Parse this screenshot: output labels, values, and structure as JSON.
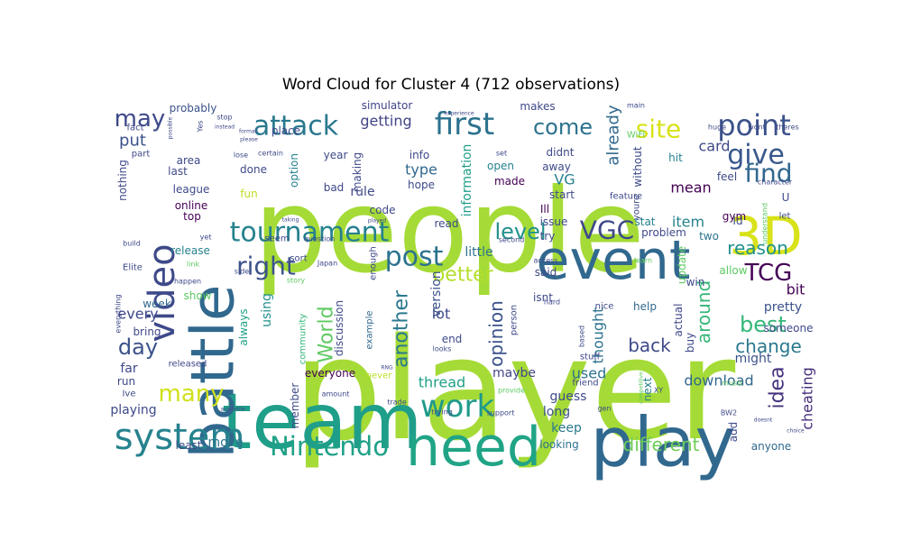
{
  "chart_data": {
    "type": "wordcloud",
    "title": "Word Cloud for Cluster 4 (712 observations)",
    "words": [
      {
        "text": "player",
        "color": "#a5db36"
      },
      {
        "text": "people",
        "color": "#a5db36"
      },
      {
        "text": "team",
        "color": "#1f9e89"
      },
      {
        "text": "battle",
        "color": "#31688e"
      },
      {
        "text": "event",
        "color": "#31688e"
      },
      {
        "text": "play",
        "color": "#31688e"
      },
      {
        "text": "need",
        "color": "#20a486"
      },
      {
        "text": "3D",
        "color": "#d8e219"
      },
      {
        "text": "video",
        "color": "#3e4989"
      },
      {
        "text": "work",
        "color": "#1f9a8a"
      },
      {
        "text": "system",
        "color": "#26828e"
      },
      {
        "text": "tournament",
        "color": "#26828e"
      },
      {
        "text": "Nintendo",
        "color": "#1fa187"
      },
      {
        "text": "post",
        "color": "#2c728e"
      },
      {
        "text": "point",
        "color": "#3b528b"
      },
      {
        "text": "attack",
        "color": "#2a788e"
      },
      {
        "text": "first",
        "color": "#2c728e"
      },
      {
        "text": "give",
        "color": "#38588c"
      },
      {
        "text": "find",
        "color": "#31688e"
      },
      {
        "text": "VGC",
        "color": "#3e4989"
      },
      {
        "text": "TCG",
        "color": "#440154"
      },
      {
        "text": "right",
        "color": "#3b528b"
      },
      {
        "text": "many",
        "color": "#d0e11c"
      },
      {
        "text": "site",
        "color": "#d8e219"
      },
      {
        "text": "come",
        "color": "#2c728e"
      },
      {
        "text": "level",
        "color": "#21918c"
      },
      {
        "text": "best",
        "color": "#35b779"
      },
      {
        "text": "day",
        "color": "#3b528b"
      },
      {
        "text": "may",
        "color": "#3e4989"
      },
      {
        "text": "idea",
        "color": "#46327e"
      },
      {
        "text": "better",
        "color": "#b5de2b"
      },
      {
        "text": "reason",
        "color": "#21918c"
      },
      {
        "text": "another",
        "color": "#2a788e"
      },
      {
        "text": "World",
        "color": "#5ec962"
      },
      {
        "text": "change",
        "color": "#2a788e"
      },
      {
        "text": "different",
        "color": "#6ece58"
      },
      {
        "text": "back",
        "color": "#3e4989"
      },
      {
        "text": "around",
        "color": "#35b779"
      },
      {
        "text": "opinion",
        "color": "#3b528b"
      },
      {
        "text": "cheating",
        "color": "#472d7b"
      },
      {
        "text": "mean",
        "color": "#440154"
      },
      {
        "text": "already",
        "color": "#31688e"
      },
      {
        "text": "card",
        "color": "#3e4989"
      },
      {
        "text": "item",
        "color": "#26828e"
      },
      {
        "text": "put",
        "color": "#3b528b"
      },
      {
        "text": "thread",
        "color": "#1fa187"
      },
      {
        "text": "used",
        "color": "#2c728e"
      },
      {
        "text": "download",
        "color": "#31688e"
      },
      {
        "text": "information",
        "color": "#1f9e89"
      },
      {
        "text": "thought",
        "color": "#2c728e"
      },
      {
        "text": "getting",
        "color": "#414487"
      },
      {
        "text": "every",
        "color": "#3e4989"
      },
      {
        "text": "keep",
        "color": "#2a788e"
      },
      {
        "text": "lot",
        "color": "#3e4989"
      },
      {
        "text": "move",
        "color": "#2c728e"
      },
      {
        "text": "playing",
        "color": "#3e4989"
      },
      {
        "text": "using",
        "color": "#21918c"
      },
      {
        "text": "bit",
        "color": "#440154"
      },
      {
        "text": "pretty",
        "color": "#3b528b"
      },
      {
        "text": "might",
        "color": "#3b528b"
      },
      {
        "text": "version",
        "color": "#3b528b"
      },
      {
        "text": "little",
        "color": "#2c728e"
      },
      {
        "text": "rule",
        "color": "#3e4989"
      },
      {
        "text": "type",
        "color": "#31688e"
      },
      {
        "text": "VG",
        "color": "#26828e"
      },
      {
        "text": "maybe",
        "color": "#414487"
      },
      {
        "text": "guess",
        "color": "#3e4989"
      },
      {
        "text": "long",
        "color": "#3b528b"
      },
      {
        "text": "looking",
        "color": "#2c728e"
      },
      {
        "text": "fun",
        "color": "#bddf26"
      },
      {
        "text": "bring",
        "color": "#3e4989"
      },
      {
        "text": "week",
        "color": "#31688e"
      },
      {
        "text": "far",
        "color": "#3e4989"
      },
      {
        "text": "run",
        "color": "#3e4989"
      },
      {
        "text": "anyone",
        "color": "#31688e"
      },
      {
        "text": "least",
        "color": "#3e4989"
      },
      {
        "text": "probably",
        "color": "#3b528b"
      },
      {
        "text": "simulator",
        "color": "#414487"
      },
      {
        "text": "makes",
        "color": "#3e4989"
      },
      {
        "text": "didnt",
        "color": "#3e4989"
      },
      {
        "text": "away",
        "color": "#3e4989"
      },
      {
        "text": "start",
        "color": "#3e4989"
      },
      {
        "text": "hit",
        "color": "#26828e"
      },
      {
        "text": "feel",
        "color": "#3e4989"
      },
      {
        "text": "gym",
        "color": "#440154"
      },
      {
        "text": "two",
        "color": "#2c728e"
      },
      {
        "text": "U",
        "color": "#3e4989"
      },
      {
        "text": "Id",
        "color": "#3e4989"
      },
      {
        "text": "let",
        "color": "#3e4989"
      },
      {
        "text": "problem",
        "color": "#3e4989"
      },
      {
        "text": "stat",
        "color": "#26828e"
      },
      {
        "text": "issue",
        "color": "#3e4989"
      },
      {
        "text": "made",
        "color": "#440154"
      },
      {
        "text": "hope",
        "color": "#3e4989"
      },
      {
        "text": "info",
        "color": "#3e4989"
      },
      {
        "text": "open",
        "color": "#26828e"
      },
      {
        "text": "Ill",
        "color": "#440154"
      },
      {
        "text": "try",
        "color": "#3e4989"
      },
      {
        "text": "without",
        "color": "#3e4989"
      },
      {
        "text": "youre",
        "color": "#3e4989"
      },
      {
        "text": "feature",
        "color": "#3e4989"
      },
      {
        "text": "WiFi",
        "color": "#5ec962"
      },
      {
        "text": "area",
        "color": "#3e4989"
      },
      {
        "text": "last",
        "color": "#3e4989"
      },
      {
        "text": "league",
        "color": "#3e4989"
      },
      {
        "text": "online",
        "color": "#440154"
      },
      {
        "text": "top",
        "color": "#440154"
      },
      {
        "text": "release",
        "color": "#26828e"
      },
      {
        "text": "show",
        "color": "#5ec962"
      },
      {
        "text": "nothing",
        "color": "#3e4989"
      },
      {
        "text": "part",
        "color": "#3e4989"
      },
      {
        "text": "fact",
        "color": "#3e4989"
      },
      {
        "text": "done",
        "color": "#3e4989"
      },
      {
        "text": "option",
        "color": "#26828e"
      },
      {
        "text": "place",
        "color": "#3e4989"
      },
      {
        "text": "year",
        "color": "#3e4989"
      },
      {
        "text": "making",
        "color": "#3e4989"
      },
      {
        "text": "bad",
        "color": "#3e4989"
      },
      {
        "text": "code",
        "color": "#3e4989"
      },
      {
        "text": "read",
        "color": "#3e4989"
      },
      {
        "text": "seem",
        "color": "#3e4989"
      },
      {
        "text": "sort",
        "color": "#3e4989"
      },
      {
        "text": "always",
        "color": "#1fa187"
      },
      {
        "text": "community",
        "color": "#35b779"
      },
      {
        "text": "discussion",
        "color": "#3e4989"
      },
      {
        "text": "everyone",
        "color": "#440154"
      },
      {
        "text": "member",
        "color": "#3e4989"
      },
      {
        "text": "never",
        "color": "#bddf26"
      },
      {
        "text": "example",
        "color": "#31688e"
      },
      {
        "text": "enough",
        "color": "#3e4989"
      },
      {
        "text": "said",
        "color": "#3e4989"
      },
      {
        "text": "isnt",
        "color": "#3e4989"
      },
      {
        "text": "person",
        "color": "#3e4989"
      },
      {
        "text": "end",
        "color": "#3e4989"
      },
      {
        "text": "nice",
        "color": "#3e4989"
      },
      {
        "text": "help",
        "color": "#31688e"
      },
      {
        "text": "actual",
        "color": "#3e4989"
      },
      {
        "text": "buy",
        "color": "#3e4989"
      },
      {
        "text": "win",
        "color": "#3e4989"
      },
      {
        "text": "next",
        "color": "#26828e"
      },
      {
        "text": "add",
        "color": "#3e4989"
      },
      {
        "text": "allow",
        "color": "#5ec962"
      },
      {
        "text": "update",
        "color": "#5ec962"
      },
      {
        "text": "someone",
        "color": "#3e4989"
      },
      {
        "text": "Elite",
        "color": "#3e4989"
      },
      {
        "text": "everything",
        "color": "#3e4989"
      },
      {
        "text": "released",
        "color": "#3e4989"
      },
      {
        "text": "stuff",
        "color": "#3e4989"
      },
      {
        "text": "friend",
        "color": "#3e4989"
      },
      {
        "text": "provide",
        "color": "#5ec962"
      },
      {
        "text": "support",
        "color": "#3e4989"
      },
      {
        "text": "trying",
        "color": "#3e4989"
      },
      {
        "text": "Ive",
        "color": "#3e4989"
      },
      {
        "text": "based",
        "color": "#3e4989"
      },
      {
        "text": "hard",
        "color": "#3e4989"
      },
      {
        "text": "access",
        "color": "#3e4989"
      },
      {
        "text": "learn",
        "color": "#5ec962"
      },
      {
        "text": "side",
        "color": "#3e4989"
      },
      {
        "text": "story",
        "color": "#5ec962"
      },
      {
        "text": "Japan",
        "color": "#3e4989"
      },
      {
        "text": "question",
        "color": "#3e4989"
      },
      {
        "text": "build",
        "color": "#3e4989"
      },
      {
        "text": "link",
        "color": "#5ec962"
      },
      {
        "text": "yet",
        "color": "#3e4989"
      },
      {
        "text": "happen",
        "color": "#3e4989"
      },
      {
        "text": "stop",
        "color": "#3e4989"
      },
      {
        "text": "instead",
        "color": "#3e4989"
      },
      {
        "text": "certain",
        "color": "#3e4989"
      },
      {
        "text": "main",
        "color": "#3e4989"
      },
      {
        "text": "huge",
        "color": "#3e4989"
      },
      {
        "text": "wont",
        "color": "#3e4989"
      },
      {
        "text": "theres",
        "color": "#3e4989"
      },
      {
        "text": "character",
        "color": "#3e4989"
      },
      {
        "text": "understand",
        "color": "#5ec962"
      },
      {
        "text": "music",
        "color": "#5ec962"
      },
      {
        "text": "competitive",
        "color": "#5ec962"
      },
      {
        "text": "gen",
        "color": "#3e4989"
      },
      {
        "text": "BW2",
        "color": "#3e4989"
      },
      {
        "text": "XY",
        "color": "#3e4989"
      },
      {
        "text": "looks",
        "color": "#3e4989"
      },
      {
        "text": "trade",
        "color": "#3e4989"
      },
      {
        "text": "amount",
        "color": "#3e4989"
      },
      {
        "text": "possible",
        "color": "#3e4989"
      },
      {
        "text": "please",
        "color": "#3e4989"
      },
      {
        "text": "format",
        "color": "#3e4989"
      },
      {
        "text": "lose",
        "color": "#3e4989"
      },
      {
        "text": "Yes",
        "color": "#3e4989"
      },
      {
        "text": "set",
        "color": "#3e4989"
      },
      {
        "text": "second",
        "color": "#3e4989"
      },
      {
        "text": "experience",
        "color": "#3e4989"
      },
      {
        "text": "taking",
        "color": "#3e4989"
      },
      {
        "text": "played",
        "color": "#3e4989"
      },
      {
        "text": "RNG",
        "color": "#3e4989"
      },
      {
        "text": "available",
        "color": "#3e4989"
      },
      {
        "text": "doesnt",
        "color": "#3e4989"
      },
      {
        "text": "choice",
        "color": "#3e4989"
      }
    ]
  }
}
